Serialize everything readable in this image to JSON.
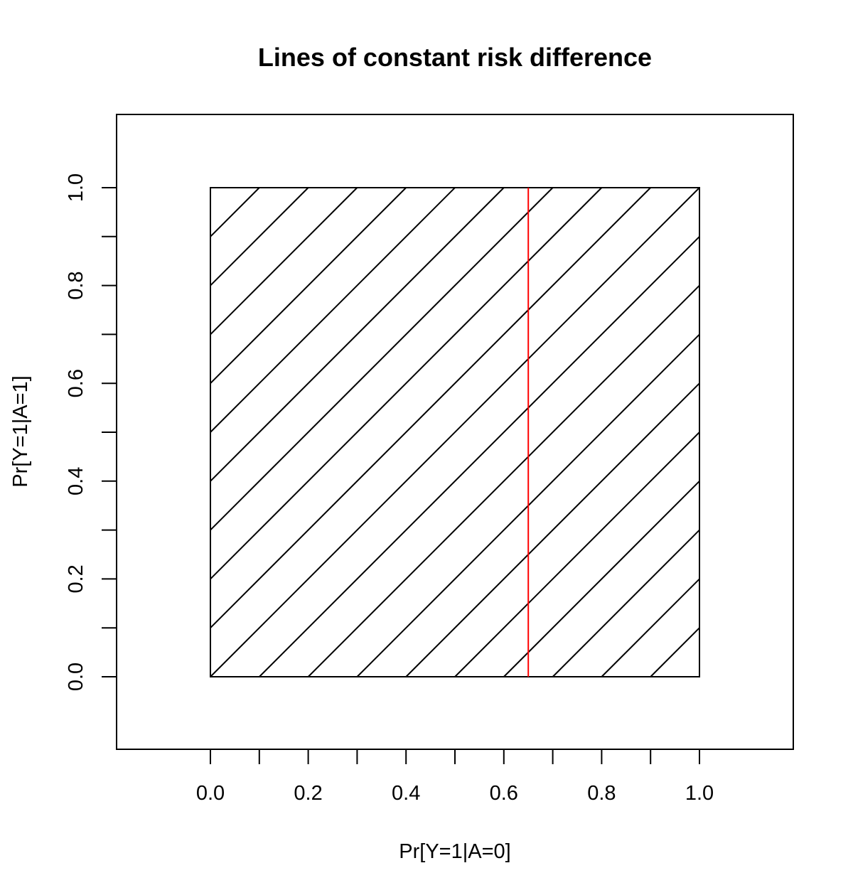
{
  "chart_data": {
    "type": "line",
    "title": "Lines of constant risk difference",
    "xlabel": "Pr[Y=1|A=0]",
    "ylabel": "Pr[Y=1|A=1]",
    "xlim": [
      -0.19,
      1.19
    ],
    "ylim": [
      -0.15,
      1.15
    ],
    "grid": false,
    "x_ticks": [
      0.0,
      0.1,
      0.2,
      0.3,
      0.4,
      0.5,
      0.6,
      0.7,
      0.8,
      0.9,
      1.0
    ],
    "x_tick_labels": [
      "0.0",
      "0.2",
      "0.4",
      "0.6",
      "0.8",
      "1.0"
    ],
    "x_tick_label_values": [
      0.0,
      0.2,
      0.4,
      0.6,
      0.8,
      1.0
    ],
    "y_ticks": [
      0.0,
      0.1,
      0.2,
      0.3,
      0.4,
      0.5,
      0.6,
      0.7,
      0.8,
      0.9,
      1.0
    ],
    "y_tick_labels": [
      "0.0",
      "0.2",
      "0.4",
      "0.6",
      "0.8",
      "1.0"
    ],
    "y_tick_label_values": [
      0.0,
      0.2,
      0.4,
      0.6,
      0.8,
      1.0
    ],
    "unit_square": {
      "x": [
        0,
        1
      ],
      "y": [
        0,
        1
      ],
      "color": "#000000"
    },
    "risk_difference_lines": {
      "slope": 1,
      "intercepts": [
        -0.9,
        -0.8,
        -0.7,
        -0.6,
        -0.5,
        -0.4,
        -0.3,
        -0.2,
        -0.1,
        0.0,
        0.1,
        0.2,
        0.3,
        0.4,
        0.5,
        0.6,
        0.7,
        0.8,
        0.9
      ],
      "color": "#000000"
    },
    "vertical_line": {
      "x": 0.65,
      "y": [
        0,
        1
      ],
      "color": "#ff0000"
    }
  }
}
